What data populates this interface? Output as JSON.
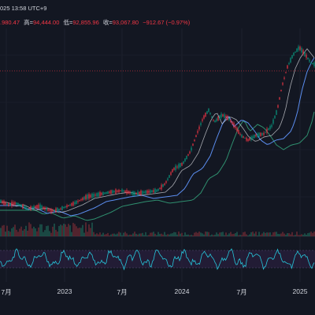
{
  "header": {
    "datetime": "025 13:58 UTC+9",
    "ohlc": [
      {
        "label": "",
        "value": ".980.47"
      },
      {
        "label": "高=",
        "value": "94,444.00"
      },
      {
        "label": "低=",
        "value": "92,855.96"
      },
      {
        "label": "收=",
        "value": "93,067.80"
      },
      {
        "label": "",
        "value": "−912.67 (−0.97%)"
      }
    ]
  },
  "time_axis": {
    "labels": [
      "7月",
      "2023",
      "7月",
      "2024",
      "7月",
      "2025"
    ]
  },
  "price_reference_line": {
    "color": "#f23645"
  },
  "colors": {
    "background": "#131722",
    "up_candle": "#089981",
    "down_candle": "#f23645",
    "ma_fast": "#e5e7eb",
    "ma_mid": "#5b8def",
    "ma_slow": "#2f8f6f",
    "oscillator": "#26c6da",
    "oscillator_band": "#2a1f3d",
    "volume_up": "#1e5e52",
    "volume_down": "#6e2a33"
  }
}
